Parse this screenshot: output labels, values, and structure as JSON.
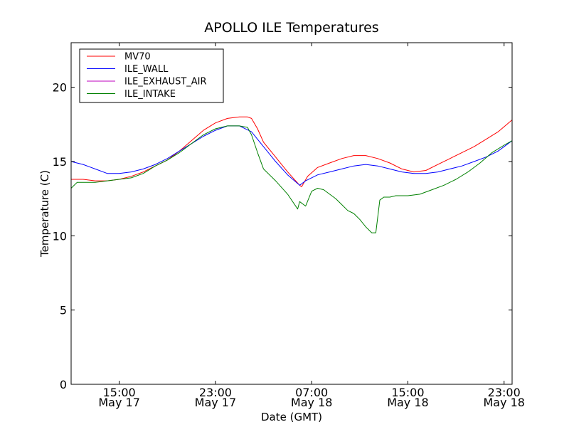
{
  "chart_data": {
    "type": "line",
    "title": "APOLLO ILE Temperatures",
    "xlabel": "Date (GMT)",
    "ylabel": "Temperature (C)",
    "xlim": [
      "2013-05-17 11:00",
      "2013-05-18 23:40"
    ],
    "ylim": [
      0,
      23
    ],
    "y_ticks": [
      0,
      5,
      10,
      15,
      20
    ],
    "x_ticks": [
      {
        "value": "2013-05-17 15:00",
        "time": "15:00",
        "date": "May 17"
      },
      {
        "value": "2013-05-17 23:00",
        "time": "23:00",
        "date": "May 17"
      },
      {
        "value": "2013-05-18 07:00",
        "time": "07:00",
        "date": "May 18"
      },
      {
        "value": "2013-05-18 15:00",
        "time": "15:00",
        "date": "May 18"
      },
      {
        "value": "2013-05-18 23:00",
        "time": "23:00",
        "date": "May 18"
      }
    ],
    "legend": {
      "location": "upper-left",
      "entries": [
        "MV70",
        "ILE_WALL",
        "ILE_EXHAUST_AIR",
        "ILE_INTAKE"
      ]
    },
    "series": [
      {
        "name": "MV70",
        "color": "#ff0000",
        "x": [
          "2013-05-17 11:00",
          "2013-05-17 12:00",
          "2013-05-17 13:00",
          "2013-05-17 14:00",
          "2013-05-17 15:00",
          "2013-05-17 16:00",
          "2013-05-17 17:00",
          "2013-05-17 18:00",
          "2013-05-17 19:00",
          "2013-05-17 20:00",
          "2013-05-17 21:00",
          "2013-05-17 22:00",
          "2013-05-17 23:00",
          "2013-05-18 00:00",
          "2013-05-18 01:00",
          "2013-05-18 01:40",
          "2013-05-18 02:00",
          "2013-05-18 02:30",
          "2013-05-18 03:00",
          "2013-05-18 04:00",
          "2013-05-18 05:00",
          "2013-05-18 06:00",
          "2013-05-18 06:10",
          "2013-05-18 06:40",
          "2013-05-18 07:30",
          "2013-05-18 08:30",
          "2013-05-18 09:30",
          "2013-05-18 10:30",
          "2013-05-18 11:30",
          "2013-05-18 12:30",
          "2013-05-18 13:30",
          "2013-05-18 14:30",
          "2013-05-18 15:30",
          "2013-05-18 16:30",
          "2013-05-18 17:30",
          "2013-05-18 18:30",
          "2013-05-18 19:30",
          "2013-05-18 20:30",
          "2013-05-18 21:30",
          "2013-05-18 22:30",
          "2013-05-18 23:40"
        ],
        "y": [
          13.8,
          13.8,
          13.7,
          13.7,
          13.8,
          14.0,
          14.3,
          14.7,
          15.1,
          15.7,
          16.4,
          17.1,
          17.6,
          17.9,
          18.0,
          18.0,
          17.9,
          17.2,
          16.3,
          15.3,
          14.3,
          13.4,
          13.3,
          14.0,
          14.6,
          14.9,
          15.2,
          15.4,
          15.4,
          15.2,
          14.9,
          14.5,
          14.3,
          14.4,
          14.8,
          15.2,
          15.6,
          16.0,
          16.5,
          17.0,
          17.8
        ]
      },
      {
        "name": "ILE_WALL",
        "color": "#0000ff",
        "x": [
          "2013-05-17 11:00",
          "2013-05-17 12:00",
          "2013-05-17 13:00",
          "2013-05-17 14:00",
          "2013-05-17 15:00",
          "2013-05-17 16:00",
          "2013-05-17 17:00",
          "2013-05-17 18:00",
          "2013-05-17 19:00",
          "2013-05-17 20:00",
          "2013-05-17 21:00",
          "2013-05-17 22:00",
          "2013-05-17 23:00",
          "2013-05-18 00:00",
          "2013-05-18 01:00",
          "2013-05-18 02:00",
          "2013-05-18 03:00",
          "2013-05-18 04:00",
          "2013-05-18 05:00",
          "2013-05-18 06:00",
          "2013-05-18 06:30",
          "2013-05-18 07:30",
          "2013-05-18 08:30",
          "2013-05-18 09:30",
          "2013-05-18 10:30",
          "2013-05-18 11:30",
          "2013-05-18 12:30",
          "2013-05-18 13:30",
          "2013-05-18 14:30",
          "2013-05-18 15:30",
          "2013-05-18 16:30",
          "2013-05-18 17:30",
          "2013-05-18 18:30",
          "2013-05-18 19:30",
          "2013-05-18 20:30",
          "2013-05-18 21:30",
          "2013-05-18 22:30",
          "2013-05-18 23:40"
        ],
        "y": [
          15.0,
          14.8,
          14.5,
          14.2,
          14.2,
          14.3,
          14.5,
          14.8,
          15.2,
          15.7,
          16.2,
          16.7,
          17.1,
          17.4,
          17.4,
          17.0,
          16.0,
          15.0,
          14.1,
          13.4,
          13.7,
          14.1,
          14.3,
          14.5,
          14.7,
          14.8,
          14.7,
          14.5,
          14.3,
          14.2,
          14.2,
          14.3,
          14.5,
          14.7,
          15.0,
          15.3,
          15.7,
          16.4
        ]
      },
      {
        "name": "ILE_EXHAUST_AIR",
        "color": "#bf00bf",
        "x": [],
        "y": []
      },
      {
        "name": "ILE_INTAKE",
        "color": "#008000",
        "x": [
          "2013-05-17 11:00",
          "2013-05-17 11:30",
          "2013-05-17 12:00",
          "2013-05-17 13:00",
          "2013-05-17 14:00",
          "2013-05-17 15:00",
          "2013-05-17 16:00",
          "2013-05-17 17:00",
          "2013-05-17 18:00",
          "2013-05-17 19:00",
          "2013-05-17 20:00",
          "2013-05-17 21:00",
          "2013-05-17 22:00",
          "2013-05-17 23:00",
          "2013-05-18 00:00",
          "2013-05-18 01:00",
          "2013-05-18 01:40",
          "2013-05-18 02:00",
          "2013-05-18 02:30",
          "2013-05-18 03:00",
          "2013-05-18 04:00",
          "2013-05-18 05:00",
          "2013-05-18 05:50",
          "2013-05-18 06:00",
          "2013-05-18 06:30",
          "2013-05-18 07:00",
          "2013-05-18 07:30",
          "2013-05-18 08:00",
          "2013-05-18 08:30",
          "2013-05-18 09:00",
          "2013-05-18 09:30",
          "2013-05-18 10:00",
          "2013-05-18 10:30",
          "2013-05-18 11:00",
          "2013-05-18 11:30",
          "2013-05-18 12:00",
          "2013-05-18 12:20",
          "2013-05-18 12:40",
          "2013-05-18 13:00",
          "2013-05-18 13:30",
          "2013-05-18 14:00",
          "2013-05-18 15:00",
          "2013-05-18 16:00",
          "2013-05-18 17:00",
          "2013-05-18 18:00",
          "2013-05-18 19:00",
          "2013-05-18 20:00",
          "2013-05-18 21:00",
          "2013-05-18 22:00",
          "2013-05-18 23:00",
          "2013-05-18 23:40"
        ],
        "y": [
          13.2,
          13.6,
          13.6,
          13.6,
          13.7,
          13.8,
          13.9,
          14.2,
          14.7,
          15.1,
          15.6,
          16.2,
          16.8,
          17.2,
          17.4,
          17.4,
          17.3,
          16.8,
          15.6,
          14.5,
          13.7,
          12.8,
          11.8,
          12.3,
          12.0,
          13.0,
          13.2,
          13.1,
          12.8,
          12.5,
          12.1,
          11.7,
          11.5,
          11.1,
          10.6,
          10.2,
          10.2,
          12.4,
          12.6,
          12.6,
          12.7,
          12.7,
          12.8,
          13.1,
          13.4,
          13.8,
          14.3,
          14.9,
          15.6,
          16.1,
          16.4
        ]
      }
    ]
  }
}
